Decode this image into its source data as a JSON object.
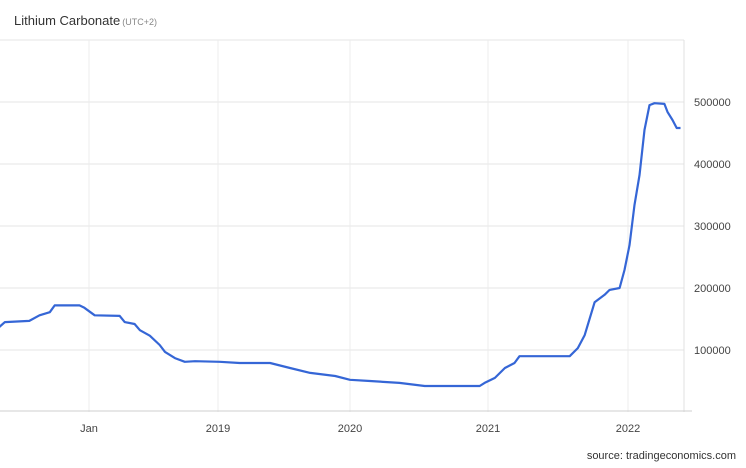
{
  "chart_data": {
    "type": "line",
    "title": "Lithium Carbonate",
    "timezone": "(UTC+2)",
    "source": "source: tradingeconomics.com",
    "line_color": "#3566d6",
    "grid": true,
    "ylim": [
      0,
      600000
    ],
    "y_ticks": [
      "100000",
      "200000",
      "300000",
      "400000",
      "500000"
    ],
    "x_ticks": [
      "Jan",
      "2019",
      "2020",
      "2021",
      "2022"
    ],
    "series": [
      {
        "x": [
          "2017-04-22",
          "2017-05-08",
          "2017-07-16",
          "2017-08-14",
          "2017-09-12",
          "2017-09-26",
          "2017-12-05",
          "2017-12-19",
          "2018-01-17",
          "2018-03-29",
          "2018-04-12",
          "2018-05-10",
          "2018-05-25",
          "2018-06-22",
          "2018-07-20",
          "2018-08-04",
          "2018-09-01",
          "2018-09-29",
          "2018-10-28",
          "2019-01-06",
          "2019-03-02",
          "2019-05-25",
          "2019-07-19",
          "2019-09-13",
          "2019-11-21",
          "2020-01-01",
          "2020-02-23",
          "2020-05-11",
          "2020-07-17",
          "2020-12-10",
          "2020-12-23",
          "2021-01-19",
          "2021-02-14",
          "2021-03-11",
          "2021-03-24",
          "2021-04-19",
          "2021-08-02",
          "2021-08-23",
          "2021-09-10",
          "2021-10-06",
          "2021-11-01",
          "2021-11-14",
          "2021-12-10",
          "2021-12-23",
          "2022-01-05",
          "2022-01-18",
          "2022-01-31",
          "2022-02-13",
          "2022-02-26",
          "2022-03-11",
          "2022-04-06",
          "2022-04-14",
          "2022-04-27",
          "2022-05-08",
          "2022-05-18"
        ],
        "values": [
          137000,
          145000,
          147000,
          156000,
          161000,
          172000,
          172000,
          168000,
          156000,
          155000,
          145000,
          142000,
          132000,
          123000,
          108000,
          97000,
          87000,
          81000,
          82000,
          81000,
          79000,
          79000,
          71000,
          63000,
          58000,
          52000,
          50000,
          47000,
          42000,
          42000,
          47000,
          55000,
          71000,
          79000,
          90000,
          90000,
          90000,
          103000,
          124000,
          177000,
          189000,
          197000,
          200000,
          229000,
          269000,
          334000,
          382000,
          455000,
          495000,
          498000,
          497000,
          484000,
          471000,
          458000,
          458000
        ]
      }
    ]
  }
}
